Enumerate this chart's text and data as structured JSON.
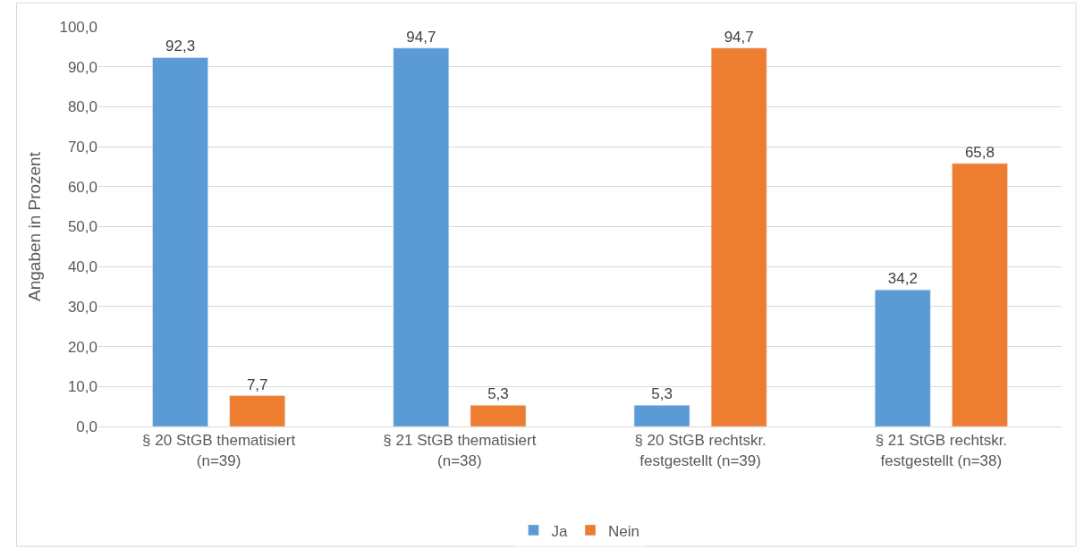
{
  "chart_data": {
    "type": "bar",
    "ylabel": "Angaben in Prozent",
    "categories": [
      "§ 20 StGB thematisiert (n=39)",
      "§ 21 StGB thematisiert (n=38)",
      "§ 20 StGB rechtskr. festgestellt (n=39)",
      "§ 21 StGB rechtskr. festgestellt (n=38)"
    ],
    "series": [
      {
        "name": "Ja",
        "color": "#5b9bd5",
        "values": [
          92.3,
          94.7,
          5.3,
          34.2
        ],
        "value_labels": [
          "92,3",
          "94,7",
          "5,3",
          "34,2"
        ]
      },
      {
        "name": "Nein",
        "color": "#ed7d31",
        "values": [
          7.7,
          5.3,
          94.7,
          65.8
        ],
        "value_labels": [
          "7,7",
          "5,3",
          "94,7",
          "65,8"
        ]
      }
    ],
    "ylim": [
      0,
      100
    ],
    "yticks": [
      {
        "value": 0,
        "label": "0,0"
      },
      {
        "value": 10,
        "label": "10,0"
      },
      {
        "value": 20,
        "label": "20,0"
      },
      {
        "value": 30,
        "label": "30,0"
      },
      {
        "value": 40,
        "label": "40,0"
      },
      {
        "value": 50,
        "label": "50,0"
      },
      {
        "value": 60,
        "label": "60,0"
      },
      {
        "value": 70,
        "label": "70,0"
      },
      {
        "value": 80,
        "label": "80,0"
      },
      {
        "value": 90,
        "label": "90,0"
      },
      {
        "value": 100,
        "label": "100,0"
      }
    ],
    "grid": "y",
    "legend": "bottom"
  }
}
